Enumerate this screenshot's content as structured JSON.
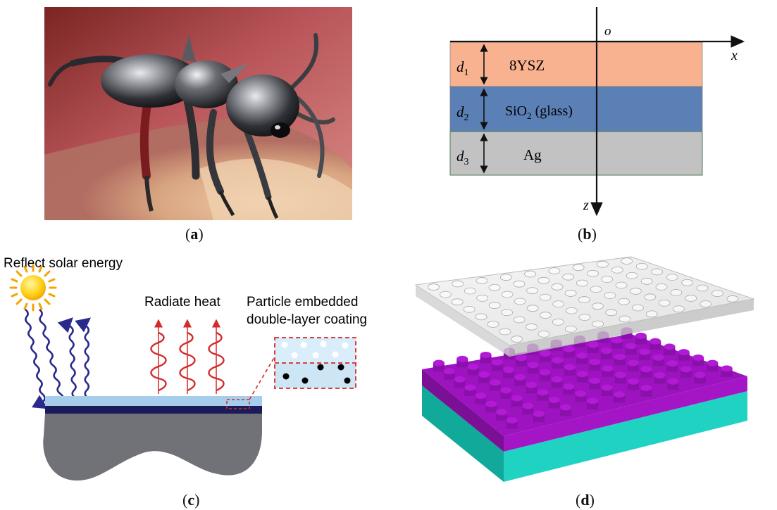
{
  "panels": {
    "a": {
      "caption_open": "(",
      "caption_letter": "a",
      "caption_close": ")"
    },
    "b": {
      "caption_open": "(",
      "caption_letter": "b",
      "caption_close": ")",
      "origin_label": "o",
      "x_label": "x",
      "z_label": "z",
      "layers": [
        {
          "d_main": "d",
          "d_sub": "1",
          "name": "8YSZ",
          "name_sub": "",
          "name_rest": "",
          "color": "#f9b290"
        },
        {
          "d_main": "d",
          "d_sub": "2",
          "name": "SiO",
          "name_sub": "2",
          "name_rest": " (glass)",
          "color": "#5b80b5"
        },
        {
          "d_main": "d",
          "d_sub": "3",
          "name": "Ag",
          "name_sub": "",
          "name_rest": "",
          "color": "#c2c2c2"
        }
      ]
    },
    "c": {
      "caption_open": "(",
      "caption_letter": "c",
      "caption_close": ")",
      "reflect_label": "Reflect solar energy",
      "radiate_label": "Radiate heat",
      "particle_label_line1": "Particle embedded",
      "particle_label_line2": "double-layer coating",
      "colors": {
        "coating_light": "#a6cdeb",
        "coating_dark": "#1b1b5a",
        "substrate": "#707278",
        "wave_blue": "#2a2a8c",
        "wave_red": "#d42a2a"
      }
    },
    "d": {
      "caption_open": "(",
      "caption_letter": "d",
      "caption_close": ")",
      "colors": {
        "pillars": "#a415c6",
        "base": "#1fd2c2",
        "glass": "#d8d8d8"
      }
    }
  }
}
